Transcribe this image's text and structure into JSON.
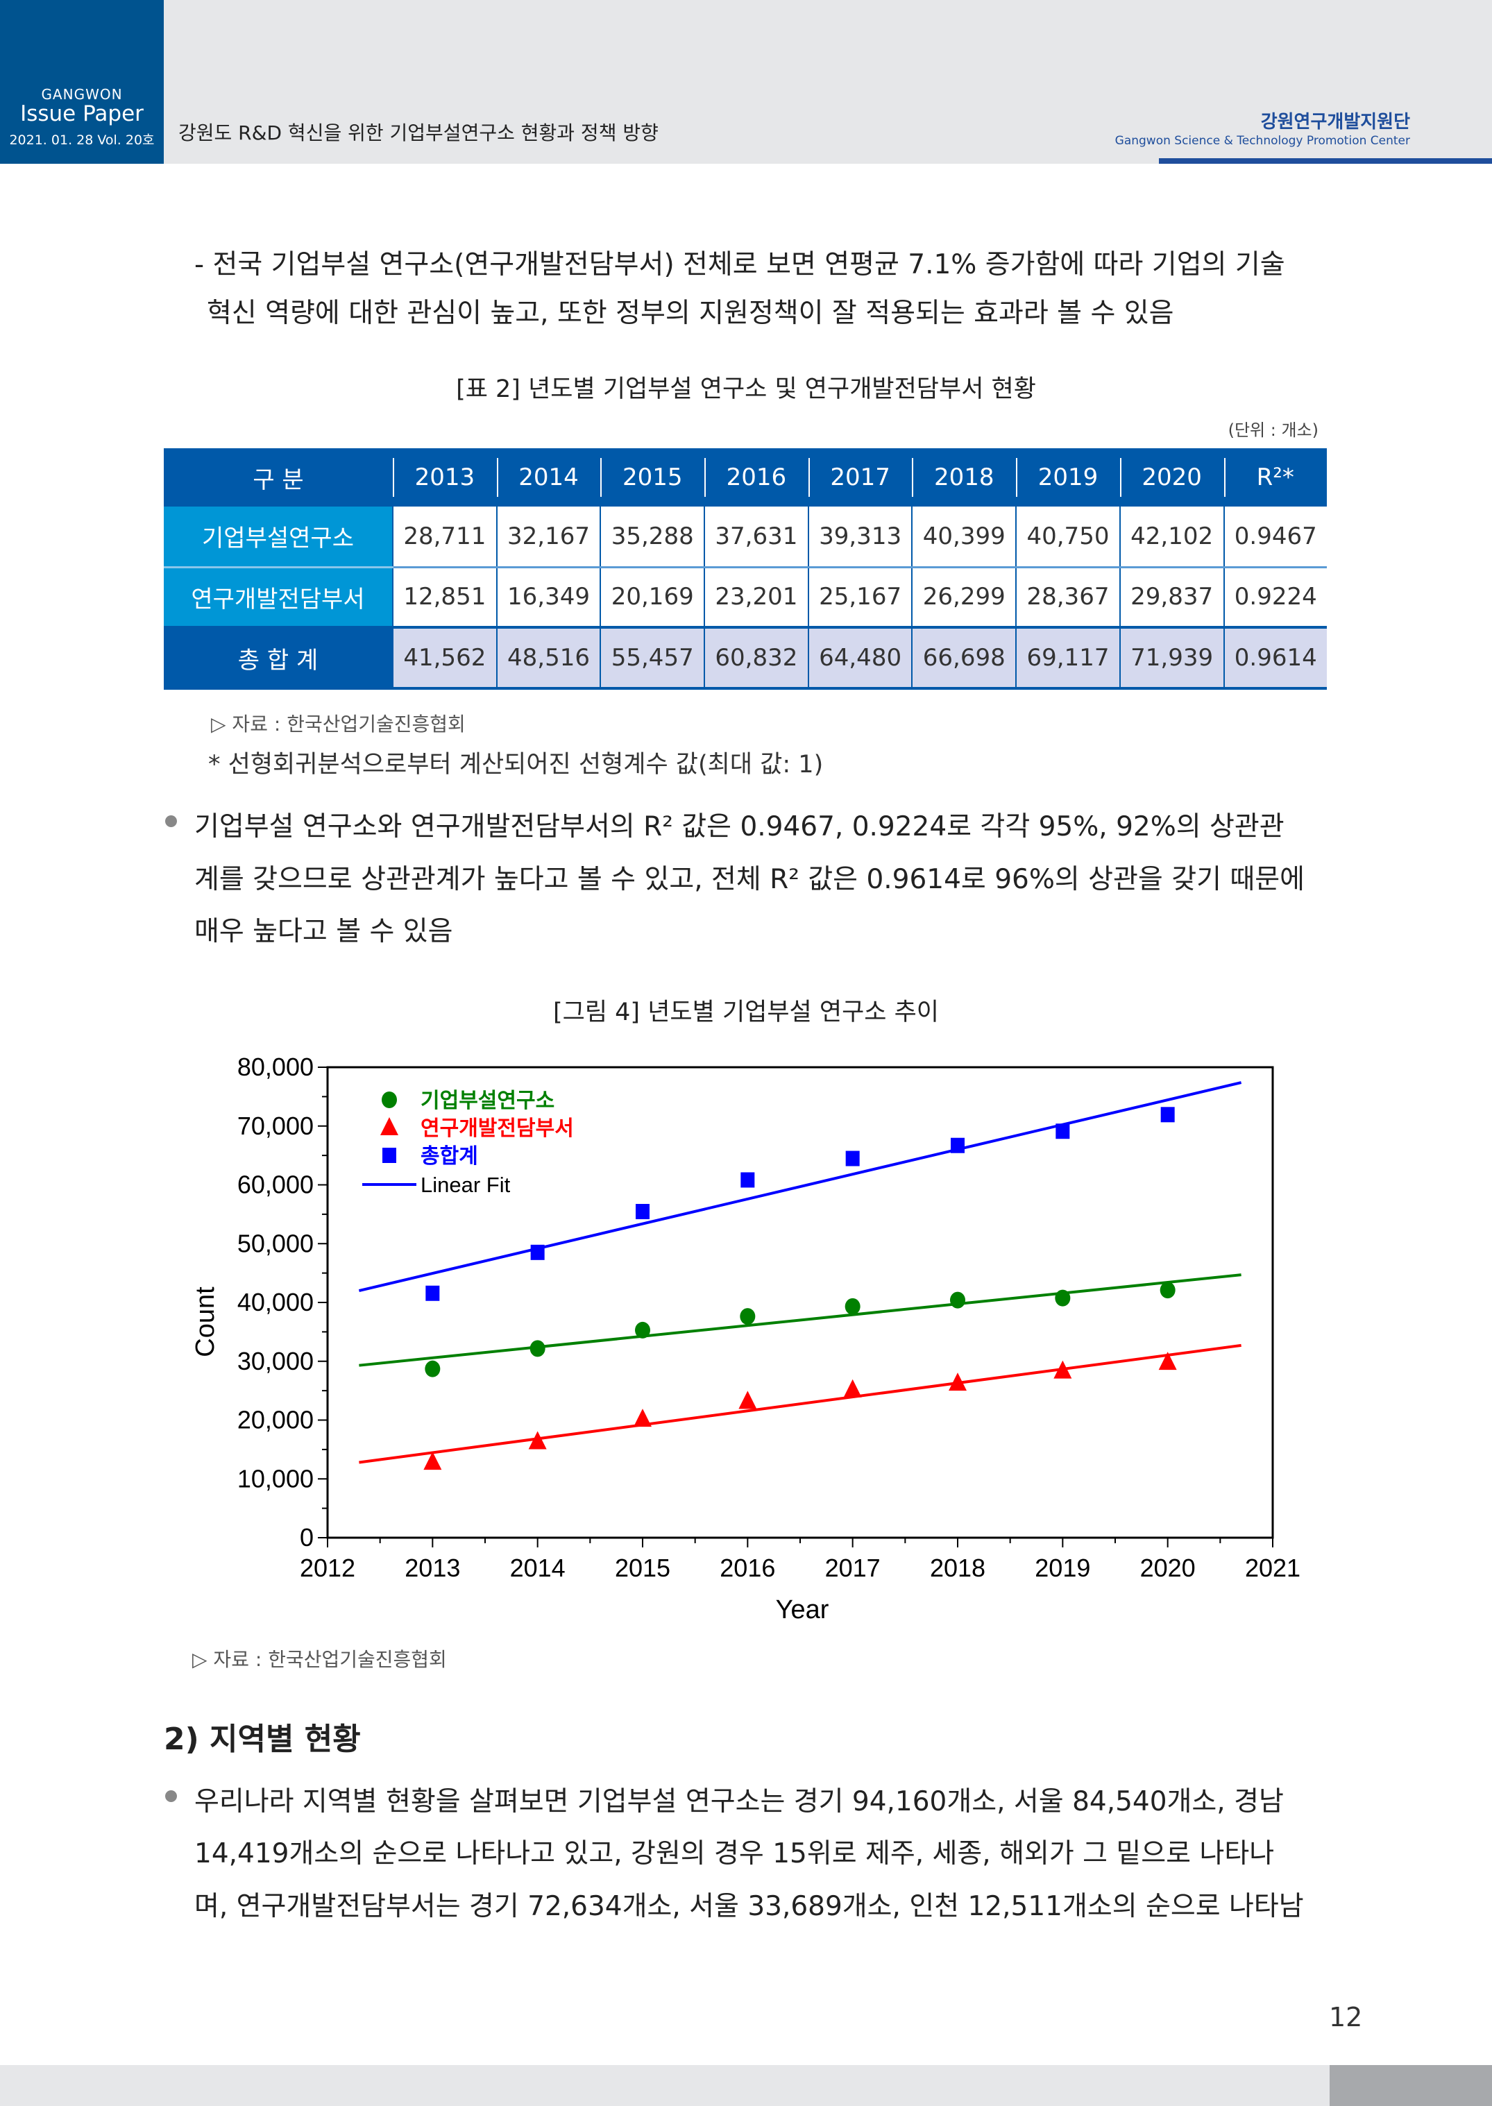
{
  "header": {
    "brand_top": "GANGWON",
    "brand_main": "Issue Paper",
    "brand_date": "2021. 01. 28  Vol. 20호",
    "doc_title": "강원도 R&D 혁신을 위한 기업부설연구소 현황과 정책 방향",
    "org_kr": "강원연구개발지원단",
    "org_en": "Gangwon Science & Technology Promotion Center"
  },
  "para1": [
    "- 전국 기업부설 연구소(연구개발전담부서) 전체로 보면 연평균 7.1% 증가함에 따라 기업의 기술",
    "혁신 역량에 대한 관심이 높고, 또한 정부의 지원정책이 잘 적용되는 효과라 볼 수 있음"
  ],
  "table": {
    "caption": "[표 2] 년도별 기업부설 연구소 및 연구개발전담부서 현황",
    "unit": "(단위 : 개소)",
    "headers": [
      "구 분",
      "2013",
      "2014",
      "2015",
      "2016",
      "2017",
      "2018",
      "2019",
      "2020",
      "R²*"
    ],
    "rows": [
      {
        "label": "기업부설연구소",
        "values": [
          "28,711",
          "32,167",
          "35,288",
          "37,631",
          "39,313",
          "40,399",
          "40,750",
          "42,102",
          "0.9467"
        ]
      },
      {
        "label": "연구개발전담부서",
        "values": [
          "12,851",
          "16,349",
          "20,169",
          "23,201",
          "25,167",
          "26,299",
          "28,367",
          "29,837",
          "0.9224"
        ]
      },
      {
        "label": "총 합 계",
        "values": [
          "41,562",
          "48,516",
          "55,457",
          "60,832",
          "64,480",
          "66,698",
          "69,117",
          "71,939",
          "0.9614"
        ]
      }
    ],
    "source": "▷ 자료 :  한국산업기술진흥협회",
    "note": "* 선형회귀분석으로부터 계산되어진 선형계수 값(최대 값: 1)"
  },
  "para2": [
    "기업부설 연구소와 연구개발전담부서의 R² 값은 0.9467, 0.9224로 각각 95%, 92%의 상관관",
    "계를 갖으므로 상관관계가 높다고 볼 수 있고, 전체 R² 값은 0.9614로 96%의 상관을 갖기 때문에",
    "매우 높다고 볼 수 있음"
  ],
  "figure": {
    "caption": "[그림 4] 년도별 기업부설 연구소 추이",
    "source": "▷ 자료 :  한국산업기술진흥협회"
  },
  "chart_data": {
    "type": "scatter",
    "title": "",
    "xlabel": "Year",
    "ylabel": "Count",
    "xlim": [
      2012,
      2021
    ],
    "ylim": [
      0,
      80000
    ],
    "xticks": [
      "2012",
      "2013",
      "2014",
      "2015",
      "2016",
      "2017",
      "2018",
      "2019",
      "2020",
      "2021"
    ],
    "yticks": [
      "0",
      "10,000",
      "20,000",
      "30,000",
      "40,000",
      "50,000",
      "60,000",
      "70,000",
      "80,000"
    ],
    "x": [
      2013,
      2014,
      2015,
      2016,
      2017,
      2018,
      2019,
      2020
    ],
    "series": [
      {
        "name": "기업부설연구소",
        "marker": "circle",
        "color": "#008000",
        "values": [
          28711,
          32167,
          35288,
          37631,
          39313,
          40399,
          40750,
          42102
        ],
        "fit": [
          [
            2012.3,
            29300
          ],
          [
            2020.7,
            44700
          ]
        ]
      },
      {
        "name": "연구개발전담부서",
        "marker": "triangle",
        "color": "#ff0000",
        "values": [
          12851,
          16349,
          20169,
          23201,
          25167,
          26299,
          28367,
          29837
        ],
        "fit": [
          [
            2012.3,
            12800
          ],
          [
            2020.7,
            32700
          ]
        ]
      },
      {
        "name": "총합계",
        "marker": "square",
        "color": "#0000ff",
        "values": [
          41562,
          48516,
          55457,
          60832,
          64480,
          66698,
          69117,
          71939
        ],
        "fit": [
          [
            2012.3,
            42000
          ],
          [
            2020.7,
            77400
          ]
        ]
      }
    ],
    "fit_legend": "Linear Fit",
    "legend_position": "top-left"
  },
  "section": {
    "title": "2) 지역별 현황"
  },
  "para3": [
    "우리나라 지역별 현황을 살펴보면 기업부설 연구소는 경기 94,160개소, 서울 84,540개소, 경남",
    "14,419개소의 순으로 나타나고 있고, 강원의 경우 15위로 제주, 세종, 해외가 그 밑으로 나타나",
    "며, 연구개발전담부서는 경기 72,634개소, 서울 33,689개소, 인천 12,511개소의 순으로 나타남"
  ],
  "page_number": "12"
}
